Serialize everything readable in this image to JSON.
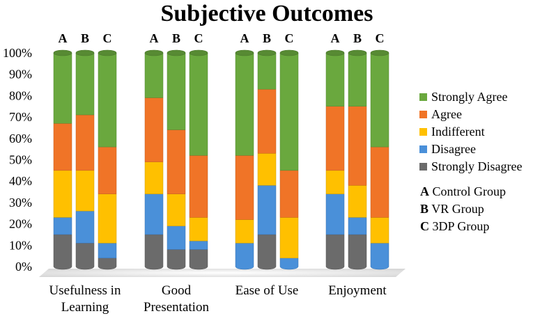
{
  "chart_data": {
    "type": "bar",
    "stacked": true,
    "title": "Subjective Outcomes",
    "ylim": [
      0,
      100
    ],
    "yticks": [
      "0%",
      "10%",
      "20%",
      "30%",
      "40%",
      "50%",
      "60%",
      "70%",
      "80%",
      "90%",
      "100%"
    ],
    "yticks_values": [
      0,
      10,
      20,
      30,
      40,
      50,
      60,
      70,
      80,
      90,
      100
    ],
    "bar_letters": [
      "A",
      "B",
      "C"
    ],
    "categories": [
      {
        "label_lines": [
          "Usefulness in",
          "Learning"
        ]
      },
      {
        "label_lines": [
          "Good",
          "Presentation"
        ]
      },
      {
        "label_lines": [
          "Ease of Use"
        ]
      },
      {
        "label_lines": [
          "Enjoyment"
        ]
      }
    ],
    "series": [
      {
        "name": "Strongly Disagree",
        "color": "#6b6b6b",
        "values": [
          [
            15,
            11,
            4
          ],
          [
            15,
            8,
            8
          ],
          [
            0,
            15,
            0
          ],
          [
            15,
            15,
            0
          ]
        ]
      },
      {
        "name": "Disagree",
        "color": "#4a90d9",
        "values": [
          [
            8,
            15,
            7
          ],
          [
            19,
            11,
            4
          ],
          [
            11,
            23,
            4
          ],
          [
            19,
            8,
            11
          ]
        ]
      },
      {
        "name": "Indifferent",
        "color": "#ffc000",
        "values": [
          [
            22,
            19,
            23
          ],
          [
            15,
            15,
            11
          ],
          [
            11,
            15,
            19
          ],
          [
            11,
            15,
            12
          ]
        ]
      },
      {
        "name": "Agree",
        "color": "#f07427",
        "values": [
          [
            22,
            26,
            22
          ],
          [
            30,
            30,
            29
          ],
          [
            30,
            30,
            22
          ],
          [
            30,
            37,
            33
          ]
        ]
      },
      {
        "name": "Strongly Agree",
        "color": "#6aa83e",
        "values": [
          [
            33,
            29,
            44
          ],
          [
            21,
            36,
            48
          ],
          [
            48,
            17,
            55
          ],
          [
            25,
            25,
            44
          ]
        ]
      }
    ],
    "legend_order": [
      "Strongly Agree",
      "Agree",
      "Indifferent",
      "Disagree",
      "Strongly Disagree"
    ],
    "group_legend": [
      {
        "key": "A",
        "text": "Control Group"
      },
      {
        "key": "B",
        "text": "VR Group"
      },
      {
        "key": "C",
        "text": "3DP Group"
      }
    ],
    "legend_position": "right"
  }
}
